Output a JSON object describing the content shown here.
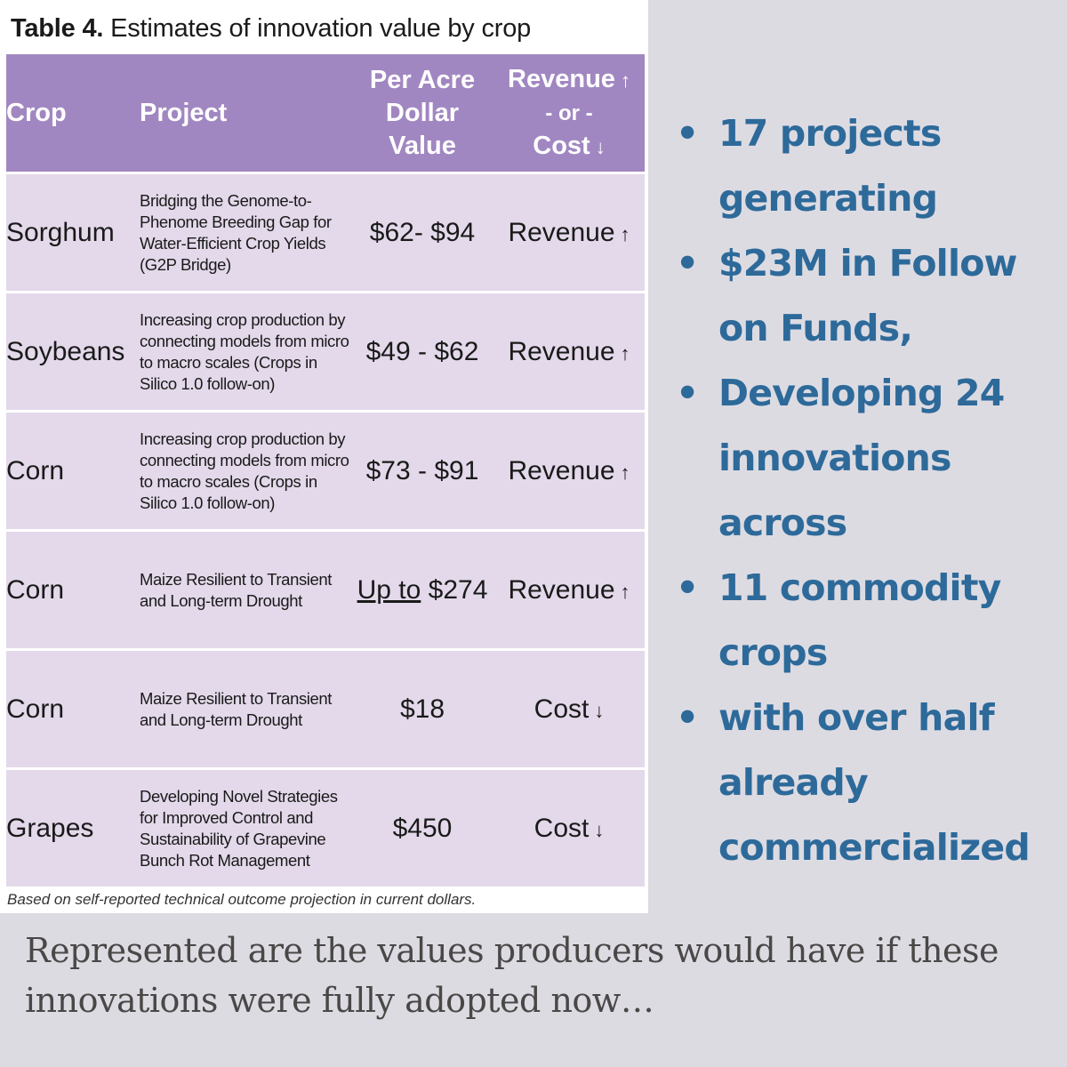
{
  "table": {
    "title_bold": "Table 4.",
    "title_rest": "Estimates of innovation value by crop",
    "headers": {
      "crop": "Crop",
      "project": "Project",
      "value_line1": "Per Acre",
      "value_line2": "Dollar",
      "value_line3": "Value",
      "rev_line1": "Revenue",
      "rev_line2": "- or -",
      "rev_line3": "Cost",
      "up_arrow": "↑",
      "down_arrow": "↓"
    },
    "rows": [
      {
        "crop": "Sorghum",
        "project": "Bridging the Genome-to-Phenome Breeding Gap for Water-Efficient Crop Yields (G2P Bridge)",
        "value": "$62- $94",
        "type": "Revenue",
        "arrow": "↑"
      },
      {
        "crop": "Soybeans",
        "project": "Increasing crop production by connecting models from micro to macro scales (Crops in Silico 1.0 follow-on)",
        "value": "$49 - $62",
        "type": "Revenue",
        "arrow": "↑"
      },
      {
        "crop": "Corn",
        "project": "Increasing crop production by connecting models from micro to macro scales (Crops in Silico 1.0 follow-on)",
        "value": "$73 - $91",
        "type": "Revenue",
        "arrow": "↑"
      },
      {
        "crop": "Corn",
        "project": "Maize Resilient to Transient and Long-term Drought",
        "value_prefix": "Up to",
        "value": "$274",
        "type": "Revenue",
        "arrow": "↑"
      },
      {
        "crop": "Corn",
        "project": "Maize Resilient to Transient and Long-term Drought",
        "value": "$18",
        "type": "Cost",
        "arrow": "↓"
      },
      {
        "crop": "Grapes",
        "project": "Developing Novel Strategies for Improved Control and Sustainability of Grapevine Bunch Rot Management",
        "value": "$450",
        "type": "Cost",
        "arrow": "↓"
      }
    ],
    "footnote": "Based on self-reported technical outcome projection in current dollars."
  },
  "bullets": [
    "17 projects generating",
    "$23M in Follow on Funds,",
    "Developing 24 innovations across",
    "11 commodity crops",
    "with over half already commercialized"
  ],
  "caption": "Represented are the values producers would have if these innovations were fully adopted now…",
  "colors": {
    "header_purple": "#a187c1",
    "row_lavender": "#e3d9ea",
    "bullet_blue": "#2d6a9a",
    "background": "#dddbe2"
  }
}
